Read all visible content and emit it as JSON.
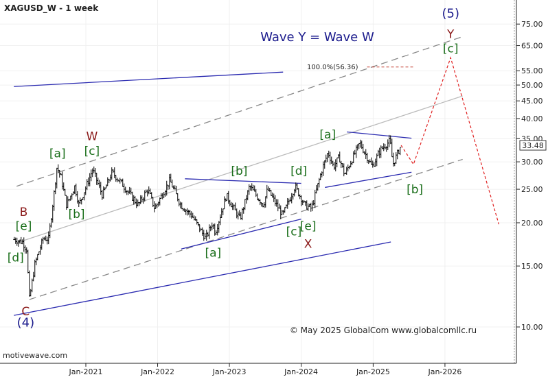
{
  "chart_data": {
    "type": "ohlc",
    "title": "XAGUSD_W - 1 week",
    "watermark": "motivewave.com",
    "copyright": "© May 2025 GlobalCom www.globalcomllc.ru",
    "headline": "Wave Y = Wave W",
    "fib_label": "100.0%(56.36)",
    "last_price": "33.48",
    "y_scale": "log",
    "ylim": [
      7.5,
      90
    ],
    "y_ticks": [
      "10.00",
      "15.00",
      "20.00",
      "25.00",
      "30.00",
      "35.00",
      "40.00",
      "45.00",
      "50.00",
      "55.00",
      "65.00",
      "75.00"
    ],
    "x_ticks": [
      "Jan-2021",
      "Jan-2022",
      "Jan-2023",
      "Jan-2024",
      "Jan-2025",
      "Jan-2026"
    ],
    "price_path": [
      {
        "date": "2020-01-03",
        "price": 17.9
      },
      {
        "date": "2020-02-14",
        "price": 17.6
      },
      {
        "date": "2020-03-06",
        "price": 16.8
      },
      {
        "date": "2020-03-20",
        "price": 12.0
      },
      {
        "date": "2020-04-17",
        "price": 15.2
      },
      {
        "date": "2020-05-29",
        "price": 18.0
      },
      {
        "date": "2020-06-26",
        "price": 18.0
      },
      {
        "date": "2020-07-24",
        "price": 24.5
      },
      {
        "date": "2020-08-07",
        "price": 29.0
      },
      {
        "date": "2020-08-28",
        "price": 27.0
      },
      {
        "date": "2020-09-25",
        "price": 22.5
      },
      {
        "date": "2020-11-06",
        "price": 25.5
      },
      {
        "date": "2020-11-27",
        "price": 22.5
      },
      {
        "date": "2021-02-05",
        "price": 28.5
      },
      {
        "date": "2021-03-26",
        "price": 24.0
      },
      {
        "date": "2021-05-14",
        "price": 28.0
      },
      {
        "date": "2021-07-02",
        "price": 26.0
      },
      {
        "date": "2021-09-24",
        "price": 22.5
      },
      {
        "date": "2021-11-12",
        "price": 25.0
      },
      {
        "date": "2021-12-17",
        "price": 22.0
      },
      {
        "date": "2022-03-04",
        "price": 26.5
      },
      {
        "date": "2022-04-29",
        "price": 22.5
      },
      {
        "date": "2022-06-24",
        "price": 21.0
      },
      {
        "date": "2022-09-02",
        "price": 18.0
      },
      {
        "date": "2022-10-07",
        "price": 20.0
      },
      {
        "date": "2022-10-21",
        "price": 18.7
      },
      {
        "date": "2022-12-16",
        "price": 24.0
      },
      {
        "date": "2023-02-24",
        "price": 20.5
      },
      {
        "date": "2023-04-14",
        "price": 25.5
      },
      {
        "date": "2023-06-23",
        "price": 22.5
      },
      {
        "date": "2023-07-14",
        "price": 25.0
      },
      {
        "date": "2023-09-29",
        "price": 21.0
      },
      {
        "date": "2023-12-01",
        "price": 25.5
      },
      {
        "date": "2024-01-19",
        "price": 22.5
      },
      {
        "date": "2024-02-23",
        "price": 22.0
      },
      {
        "date": "2024-04-12",
        "price": 28.0
      },
      {
        "date": "2024-05-17",
        "price": 32.0
      },
      {
        "date": "2024-06-14",
        "price": 29.0
      },
      {
        "date": "2024-07-12",
        "price": 31.0
      },
      {
        "date": "2024-08-09",
        "price": 27.5
      },
      {
        "date": "2024-10-25",
        "price": 34.0
      },
      {
        "date": "2024-12-27",
        "price": 29.0
      },
      {
        "date": "2025-02-07",
        "price": 32.5
      },
      {
        "date": "2025-03-28",
        "price": 34.5
      },
      {
        "date": "2025-04-11",
        "price": 29.5
      },
      {
        "date": "2025-05-23",
        "price": 33.48
      }
    ],
    "projection": [
      {
        "date": "2025-05-23",
        "price": 33.48
      },
      {
        "date": "2025-07-25",
        "price": 29.5
      },
      {
        "date": "2026-01-30",
        "price": 60.0
      },
      {
        "date": "2026-10-02",
        "price": 19.8
      }
    ],
    "target_line": {
      "price": 56.36,
      "from": "2024-12-01",
      "to": "2025-08-01"
    },
    "channel_lines": [
      {
        "style": "dash",
        "color": "#888888",
        "p1": {
          "date": "2020-03-20",
          "price": 12.0
        },
        "p2": {
          "date": "2026-04-01",
          "price": 30.5
        }
      },
      {
        "style": "dash",
        "color": "#888888",
        "p1": {
          "date": "2020-01-15",
          "price": 25.5
        },
        "p2": {
          "date": "2026-04-01",
          "price": 69.0
        }
      },
      {
        "style": "solid",
        "color": "#bbbbbb",
        "p1": {
          "date": "2020-01-15",
          "price": 17.5
        },
        "p2": {
          "date": "2026-04-01",
          "price": 46.5
        }
      },
      {
        "style": "solid",
        "color": "#2a2ab0",
        "p1": {
          "date": "2020-01-01",
          "price": 10.8
        },
        "p2": {
          "date": "2025-04-01",
          "price": 17.6
        }
      },
      {
        "style": "solid",
        "color": "#2a2ab0",
        "p1": {
          "date": "2020-01-01",
          "price": 49.5
        },
        "p2": {
          "date": "2023-10-01",
          "price": 54.5
        }
      },
      {
        "style": "solid",
        "color": "#2a2ab0",
        "p1": {
          "date": "2022-05-01",
          "price": 16.8
        },
        "p2": {
          "date": "2024-01-01",
          "price": 20.5
        }
      },
      {
        "style": "solid",
        "color": "#2a2ab0",
        "p1": {
          "date": "2022-05-20",
          "price": 26.8
        },
        "p2": {
          "date": "2024-01-01",
          "price": 26.0
        }
      },
      {
        "style": "solid",
        "color": "#2a2ab0",
        "p1": {
          "date": "2024-05-01",
          "price": 25.3
        },
        "p2": {
          "date": "2025-07-15",
          "price": 28.0
        }
      },
      {
        "style": "solid",
        "color": "#2a2ab0",
        "p1": {
          "date": "2024-08-20",
          "price": 36.6
        },
        "p2": {
          "date": "2025-07-15",
          "price": 35.1
        }
      }
    ],
    "wave_labels": [
      {
        "text": "(4)",
        "color": "#1a1a8c",
        "date": "2020-03-01",
        "price": 10.3
      },
      {
        "text": "C",
        "color": "#8b1a1a",
        "date": "2020-03-01",
        "price": 11.1
      },
      {
        "text": "[d]",
        "color": "#1a6e1a",
        "date": "2020-01-10",
        "price": 15.9
      },
      {
        "text": "[e]",
        "color": "#1a6e1a",
        "date": "2020-02-20",
        "price": 19.6
      },
      {
        "text": "B",
        "color": "#8b1a1a",
        "date": "2020-02-20",
        "price": 21.5
      },
      {
        "text": "[a]",
        "color": "#1a6e1a",
        "date": "2020-08-10",
        "price": 31.8
      },
      {
        "text": "[b]",
        "color": "#1a6e1a",
        "date": "2020-11-15",
        "price": 21.2
      },
      {
        "text": "[c]",
        "color": "#1a6e1a",
        "date": "2021-02-01",
        "price": 32.3
      },
      {
        "text": "W",
        "color": "#8b1a1a",
        "date": "2021-02-01",
        "price": 35.6
      },
      {
        "text": "[a]",
        "color": "#1a6e1a",
        "date": "2022-10-10",
        "price": 16.4
      },
      {
        "text": "[b]",
        "color": "#1a6e1a",
        "date": "2023-02-20",
        "price": 28.3
      },
      {
        "text": "[c]",
        "color": "#1a6e1a",
        "date": "2023-11-25",
        "price": 18.9
      },
      {
        "text": "[d]",
        "color": "#1a6e1a",
        "date": "2023-12-20",
        "price": 28.3
      },
      {
        "text": "[e]",
        "color": "#1a6e1a",
        "date": "2024-02-05",
        "price": 19.6
      },
      {
        "text": "X",
        "color": "#8b1a1a",
        "date": "2024-02-05",
        "price": 17.4
      },
      {
        "text": "[a]",
        "color": "#1a6e1a",
        "date": "2024-05-15",
        "price": 36.0
      },
      {
        "text": "[b]",
        "color": "#1a6e1a",
        "date": "2025-08-01",
        "price": 25.0
      },
      {
        "text": "[c]",
        "color": "#1a6e1a",
        "date": "2026-01-30",
        "price": 63.8
      },
      {
        "text": "Y",
        "color": "#8b1a1a",
        "date": "2026-01-30",
        "price": 70.2
      },
      {
        "text": "(5)",
        "color": "#1a1a8c",
        "date": "2026-01-30",
        "price": 80.5
      }
    ],
    "colors": {
      "bars": "#000000",
      "projection": "#e02020",
      "target": "#c0392b",
      "headline": "#1a1a8c"
    }
  }
}
